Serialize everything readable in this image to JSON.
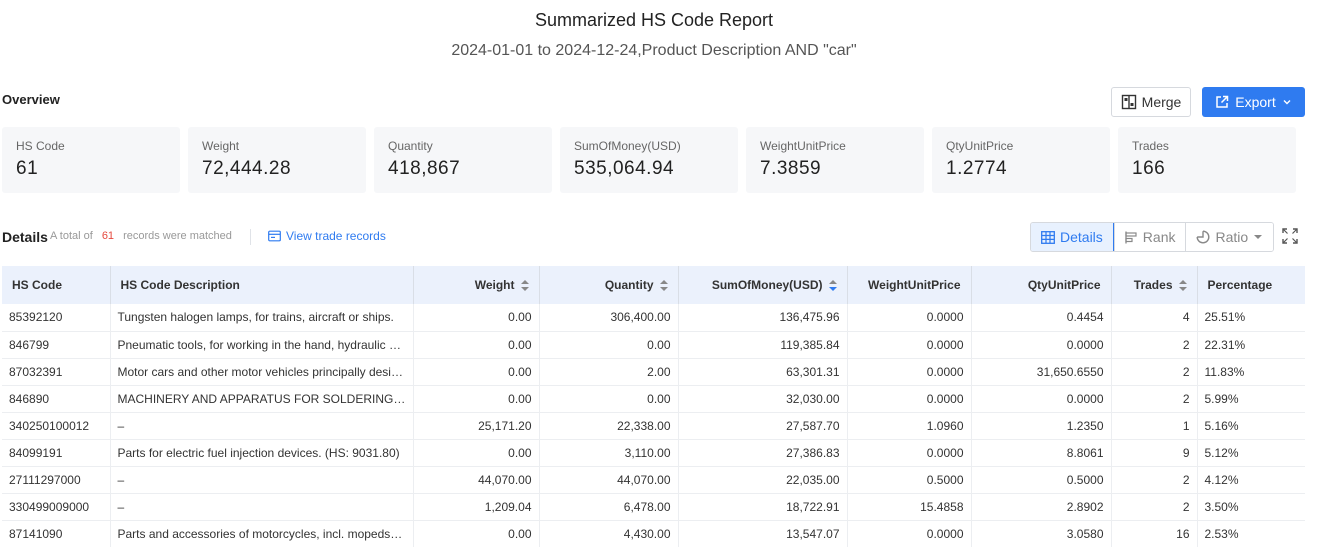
{
  "report": {
    "title": "Summarized HS Code Report",
    "subtitle": "2024-01-01 to 2024-12-24,Product Description AND \"car\""
  },
  "overview": {
    "label": "Overview",
    "merge_label": "Merge",
    "export_label": "Export",
    "cards": [
      {
        "label": "HS Code",
        "value": "61"
      },
      {
        "label": "Weight",
        "value": "72,444.28"
      },
      {
        "label": "Quantity",
        "value": "418,867"
      },
      {
        "label": "SumOfMoney(USD)",
        "value": "535,064.94"
      },
      {
        "label": "WeightUnitPrice",
        "value": "7.3859"
      },
      {
        "label": "QtyUnitPrice",
        "value": "1.2774"
      },
      {
        "label": "Trades",
        "value": "166"
      }
    ]
  },
  "details": {
    "label": "Details",
    "total_prefix": "A total of",
    "total_count": "61",
    "total_suffix": "records were matched",
    "view_link": "View trade records",
    "view_buttons": {
      "details": "Details",
      "rank": "Rank",
      "ratio": "Ratio"
    }
  },
  "table": {
    "columns": [
      "HS Code",
      "HS Code Description",
      "Weight",
      "Quantity",
      "SumOfMoney(USD)",
      "WeightUnitPrice",
      "QtyUnitPrice",
      "Trades",
      "Percentage"
    ],
    "rows": [
      [
        "85392120",
        "Tungsten halogen lamps, for trains, aircraft or ships.",
        "0.00",
        "306,400.00",
        "136,475.96",
        "0.0000",
        "0.4454",
        "4",
        "25.51%"
      ],
      [
        "846799",
        "Pneumatic tools, for working in the hand, hydraulic or w...",
        "0.00",
        "0.00",
        "119,385.84",
        "0.0000",
        "0.0000",
        "2",
        "22.31%"
      ],
      [
        "87032391",
        "Motor cars and other motor vehicles principally design...",
        "0.00",
        "2.00",
        "63,301.31",
        "0.0000",
        "31,650.6550",
        "2",
        "11.83%"
      ],
      [
        "846890",
        "MACHINERY AND APPARATUS FOR SOLDERING, BRAZI...",
        "0.00",
        "0.00",
        "32,030.00",
        "0.0000",
        "0.0000",
        "2",
        "5.99%"
      ],
      [
        "340250100012",
        "–",
        "25,171.20",
        "22,338.00",
        "27,587.70",
        "1.0960",
        "1.2350",
        "1",
        "5.16%"
      ],
      [
        "84099191",
        "Parts for electric fuel injection devices. (HS: 9031.80)",
        "0.00",
        "3,110.00",
        "27,386.83",
        "0.0000",
        "8.8061",
        "9",
        "5.12%"
      ],
      [
        "27111297000",
        "–",
        "44,070.00",
        "44,070.00",
        "22,035.00",
        "0.5000",
        "0.5000",
        "2",
        "4.12%"
      ],
      [
        "330499009000",
        "–",
        "1,209.04",
        "6,478.00",
        "18,722.91",
        "15.4858",
        "2.8902",
        "2",
        "3.50%"
      ],
      [
        "87141090",
        "Parts and accessories of motorcycles, incl. mopeds, n.e...",
        "0.00",
        "4,430.00",
        "13,547.07",
        "0.0000",
        "3.0580",
        "16",
        "2.53%"
      ]
    ]
  }
}
